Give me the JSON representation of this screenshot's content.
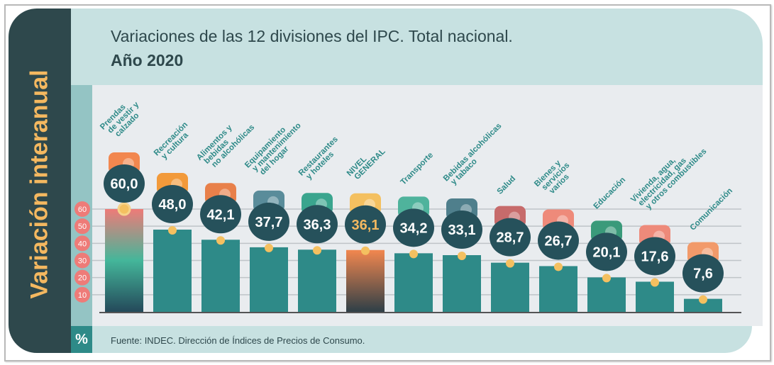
{
  "header": {
    "title": "Variaciones de las 12 divisiones del IPC. Total nacional.",
    "subtitle": "Año 2020"
  },
  "side_label": "Variación interanual",
  "unit_label": "%",
  "footer": {
    "source": "Fuente: INDEC. Dirección de Índices de Precios de Consumo."
  },
  "colors": {
    "bar": "#2e8a88",
    "bubble": "#26515b",
    "highlight_text": "#f4b860",
    "dot": "#f4c060",
    "label": "#2e8a88",
    "tick_badge": "#ee7b78"
  },
  "chart_data": {
    "type": "bar",
    "title": "Variaciones de las 12 divisiones del IPC. Total nacional. Año 2020",
    "ylabel": "Variación interanual",
    "unit": "%",
    "ylim": [
      0,
      60
    ],
    "yticks": [
      10,
      20,
      30,
      40,
      50,
      60
    ],
    "grid": true,
    "categories": [
      [
        "Prendas",
        "de vestir y",
        "calzado"
      ],
      [
        "Recreación",
        "y cultura"
      ],
      [
        "Alimentos y",
        "bebidas",
        "no alcohólicas"
      ],
      [
        "Equipamiento",
        "y mantenimiento",
        "del hogar"
      ],
      [
        "Restaurantes",
        "y hoteles"
      ],
      [
        "NIVEL",
        "GENERAL"
      ],
      [
        "Transporte"
      ],
      [
        "Bebidas alcohólicas",
        "y tabaco"
      ],
      [
        "Salud"
      ],
      [
        "Bienes y",
        "servicios",
        "varios"
      ],
      [
        "Educación"
      ],
      [
        "Vivienda, agua,",
        "electricidad, gas",
        "y otros combustibles"
      ],
      [
        "Comunicación"
      ]
    ],
    "values": [
      60.0,
      48.0,
      42.1,
      37.7,
      36.3,
      36.1,
      34.2,
      33.1,
      28.7,
      26.7,
      20.1,
      17.6,
      7.6
    ],
    "data_labels": [
      "60,0",
      "48,0",
      "42,1",
      "37,7",
      "36,3",
      "36,1",
      "34,2",
      "33,1",
      "28,7",
      "26,7",
      "20,1",
      "17,6",
      "7,6"
    ],
    "icons": [
      "clothing-icon",
      "recreation-icon",
      "food-icon",
      "washing-machine-icon",
      "restaurant-travel-icon",
      "shopping-basket-icon",
      "transport-sube-icon",
      "wine-tobacco-icon",
      "health-cross-icon",
      "grooming-icon",
      "education-books-icon",
      "housing-utilities-icon",
      "mobile-phone-icon"
    ],
    "highlight_index": 5
  }
}
